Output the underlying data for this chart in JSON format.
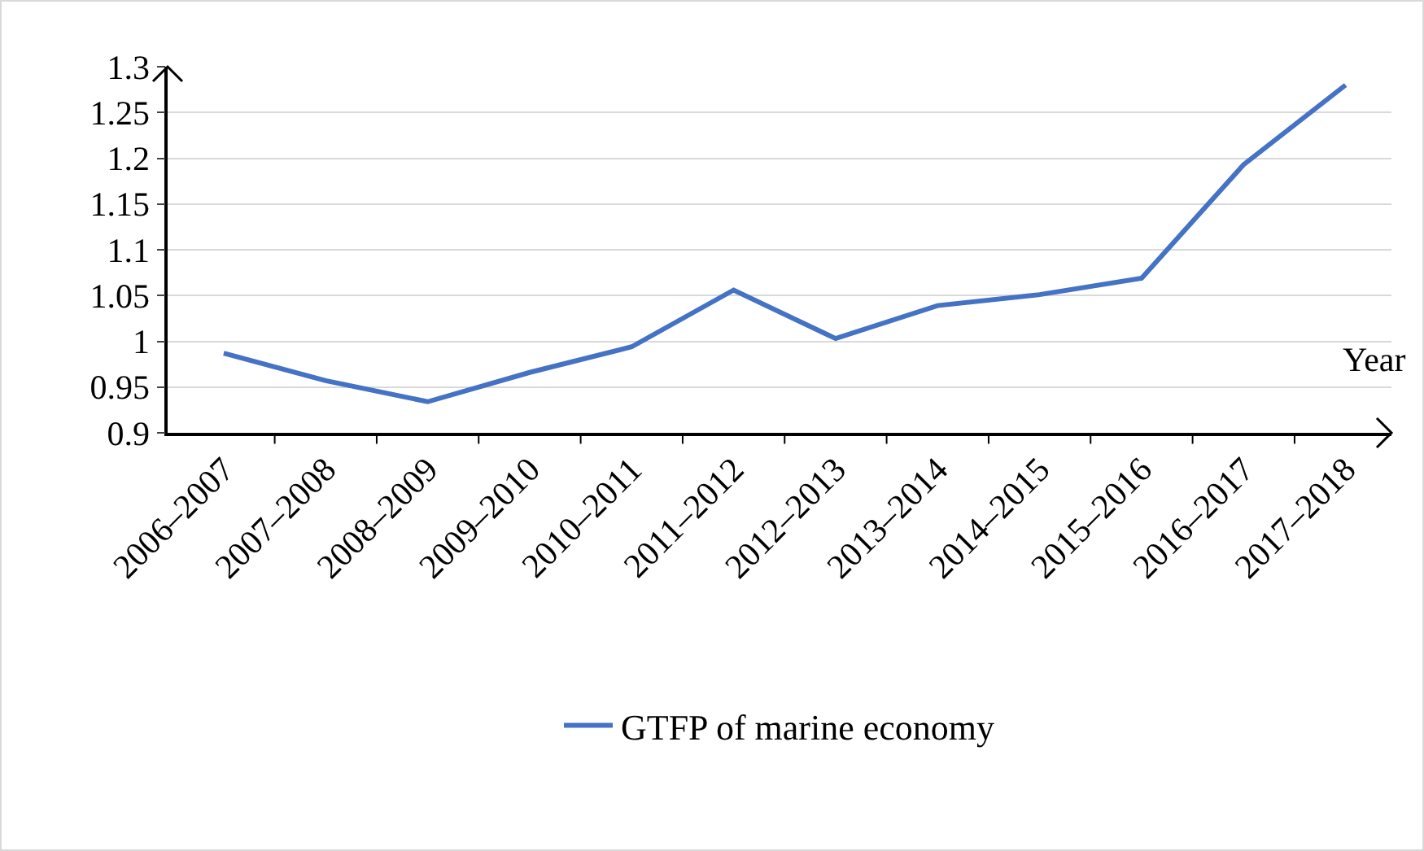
{
  "chart_data": {
    "type": "line",
    "xlabel": "Year",
    "categories": [
      "2006–2007",
      "2007–2008",
      "2008–2009",
      "2009–2010",
      "2010–2011",
      "2011–2012",
      "2012–2013",
      "2013–2014",
      "2014–2015",
      "2015–2016",
      "2016–2017",
      "2017–2018"
    ],
    "series": [
      {
        "name": "GTFP of marine economy",
        "color": "#4472c4",
        "values": [
          0.987,
          0.957,
          0.934,
          0.966,
          0.994,
          1.056,
          1.003,
          1.039,
          1.051,
          1.069,
          1.193,
          1.28
        ]
      }
    ],
    "ylim": [
      0.9,
      1.3
    ],
    "yticks": [
      0.9,
      0.95,
      1,
      1.05,
      1.1,
      1.15,
      1.2,
      1.25,
      1.3
    ],
    "grid": "y",
    "legend": "bottom",
    "marker": "none",
    "line_style": "solid"
  }
}
